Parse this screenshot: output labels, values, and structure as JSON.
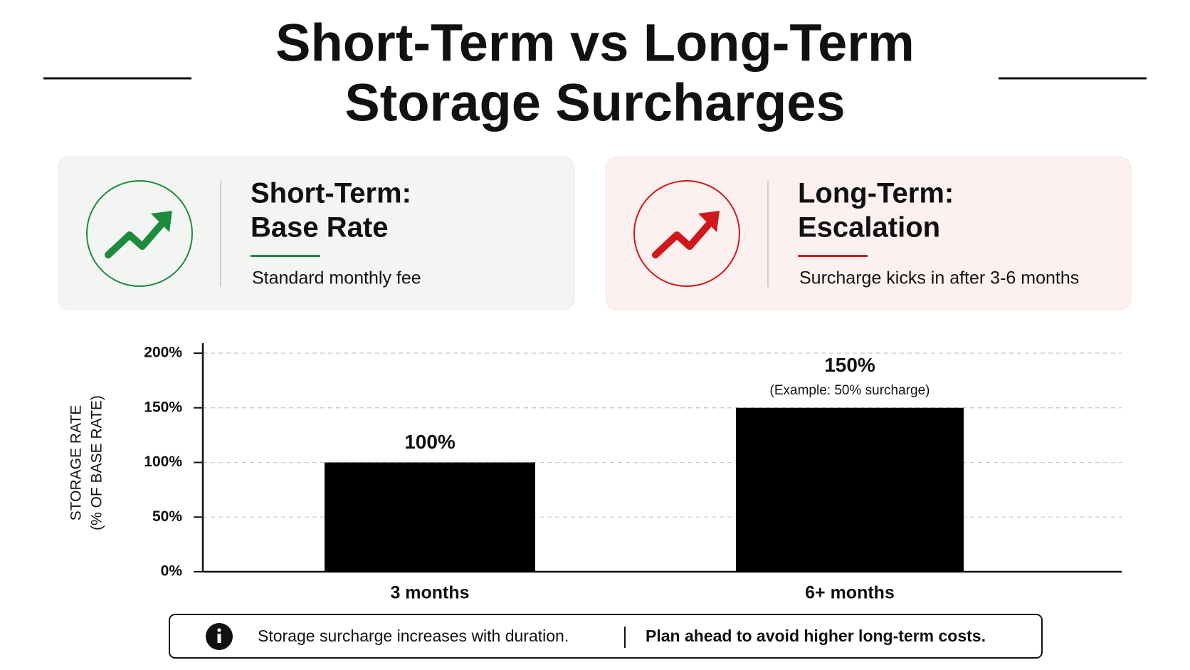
{
  "header": {
    "title_lines": [
      "Short-Term vs Long-Term",
      "Storage Surcharges"
    ]
  },
  "cards": [
    {
      "heading_lines": [
        "Short-Term:",
        "Base Rate"
      ],
      "text": "Standard monthly fee",
      "color": "#1e8a3e"
    },
    {
      "heading_lines": [
        "Long-Term:",
        "Escalation"
      ],
      "text": "Surcharge kicks in after 3-6 months",
      "color": "#d0181c"
    }
  ],
  "chart_data": {
    "type": "bar",
    "ylabel_lines": [
      "STORAGE RATE",
      "(% OF BASE RATE)"
    ],
    "categories": [
      "3 months",
      "6+ months"
    ],
    "values": [
      100,
      150
    ],
    "value_labels": [
      "100%",
      "150%"
    ],
    "annotation": "(Example: 50% surcharge)",
    "color": "#000000",
    "ylim": [
      0,
      200
    ],
    "yticks": [
      {
        "value": 0,
        "label": "0%"
      },
      {
        "value": 50,
        "label": "50%"
      },
      {
        "value": 100,
        "label": "100%"
      },
      {
        "value": 150,
        "label": "150%"
      },
      {
        "value": 200,
        "label": "200%"
      }
    ],
    "grid": true
  },
  "footer": {
    "note": "Storage surcharge increases with duration.",
    "emphasis": "Plan ahead to avoid higher long-term costs."
  }
}
